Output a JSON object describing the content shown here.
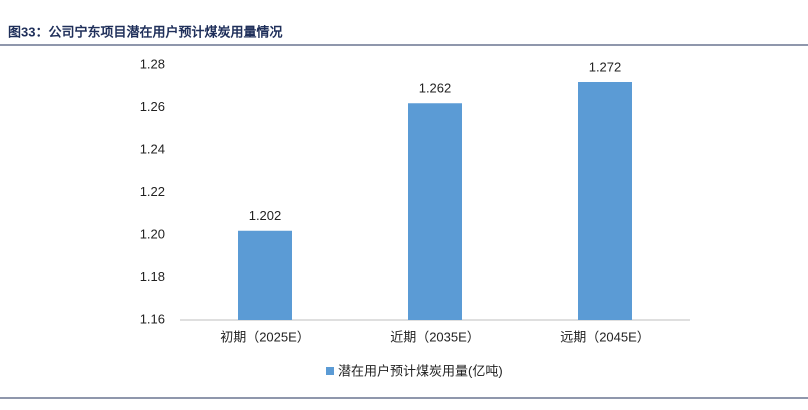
{
  "chart_data": {
    "type": "bar",
    "title": "图33：公司宁东项目潜在用户预计煤炭用量情况",
    "categories": [
      "初期（2025E）",
      "近期（2035E）",
      "远期（2045E）"
    ],
    "series": [
      {
        "name": "潜在用户预计煤炭用量(亿吨)",
        "color": "#5b9bd5",
        "values": [
          1.202,
          1.262,
          1.272
        ]
      }
    ],
    "ylim": [
      1.16,
      1.28
    ],
    "yticks": [
      1.16,
      1.18,
      {
        "value": 1.2,
        "label": "1.20"
      },
      1.22,
      1.24,
      1.26,
      1.28
    ],
    "grid": false
  }
}
